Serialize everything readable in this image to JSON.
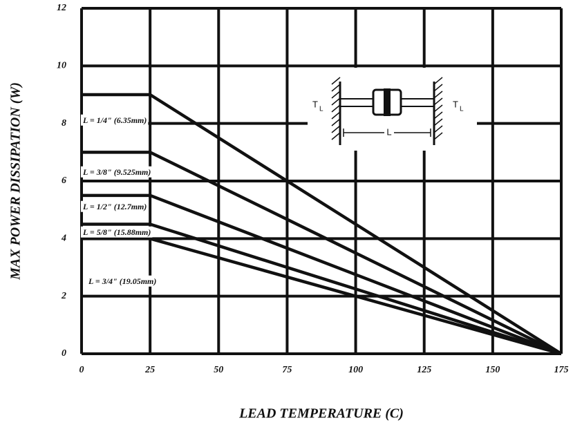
{
  "chart_data": {
    "type": "line",
    "x_label": "LEAD TEMPERATURE (C)",
    "y_label": "MAX POWER DISSIPATION (W)",
    "x": [
      0,
      25,
      175
    ],
    "series": [
      {
        "name": "L = 1/4\" (6.35mm)",
        "color": "#111111",
        "values": [
          9,
          9,
          0
        ]
      },
      {
        "name": "L = 3/8\" (9.525mm)",
        "color": "#111111",
        "values": [
          7,
          7,
          0
        ]
      },
      {
        "name": "L = 1/2\" (12.7mm)",
        "color": "#111111",
        "values": [
          5.5,
          5.5,
          0
        ]
      },
      {
        "name": "L = 5/8\" (15.88mm)",
        "color": "#111111",
        "values": [
          4.5,
          4.5,
          0
        ]
      },
      {
        "name": "L = 3/4\" (19.05mm)",
        "color": "#111111",
        "values": [
          4,
          4,
          0
        ]
      }
    ],
    "xlim": [
      0,
      175
    ],
    "ylim": [
      0,
      12
    ],
    "xticks": [
      0,
      25,
      50,
      75,
      100,
      125,
      150,
      175
    ],
    "yticks": [
      0,
      2,
      4,
      6,
      8,
      10,
      12
    ],
    "grid": true,
    "inset_labels": {
      "left": "T",
      "left_sub": "L",
      "right": "T",
      "right_sub": "L",
      "length": "L"
    }
  }
}
